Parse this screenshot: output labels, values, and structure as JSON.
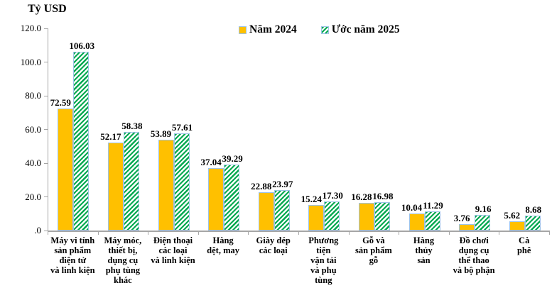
{
  "chart_data": {
    "type": "bar",
    "title": "",
    "ylabel": "Tỷ USD",
    "xlabel": "",
    "ylim": [
      0,
      120
    ],
    "ytick_step": 20,
    "ytick_labels": [
      "120.0",
      "100.0",
      "80.0",
      "60.0",
      "40.0",
      "20.0",
      ".0"
    ],
    "grid": false,
    "legend_position": "top-center",
    "value_labels_shown": true,
    "value_label_format": "0.00",
    "categories": [
      "Máy vi tính sản phẩm điện tử và linh kiện",
      "Máy móc, thiết bị, dụng cụ phụ tùng khác",
      "Điện thoại các loại và linh kiện",
      "Hàng dệt, may",
      "Giày dép các loại",
      "Phương tiện vận tải và phụ tùng",
      "Gỗ và sản phẩm gỗ",
      "Hàng thủy sản",
      "Đồ chơi dụng cụ thể thao và bộ phận",
      "Cà phê"
    ],
    "categories_display": [
      "Máy vi tính\nsản phẩm\nđiện tử\nvà linh kiện",
      "Máy móc,\nthiết bị,\ndụng cụ\nphụ tùng\nkhác",
      "Điện thoại\ncác loại\nvà linh kiện",
      "Hàng\ndệt, may",
      "Giày dép\ncác loại",
      "Phương\ntiện\nvận tải\nvà phụ\ntùng",
      "Gỗ và\nsản phẩm\ngỗ",
      "Hàng\nthủy\nsản",
      "Đồ chơi\ndụng cụ\nthể thao\nvà bộ phận",
      "Cà\nphê"
    ],
    "series": [
      {
        "name": "Năm 2024",
        "pattern": "solid",
        "color": "#FFC000",
        "values": [
          72.59,
          52.17,
          53.89,
          37.04,
          22.88,
          15.24,
          16.28,
          10.04,
          3.76,
          5.62
        ]
      },
      {
        "name": "Ước năm 2025",
        "pattern": "diagonal-hatch",
        "color": "#00A850",
        "values": [
          106.03,
          58.38,
          57.61,
          39.29,
          23.97,
          17.3,
          16.98,
          11.29,
          9.16,
          8.68
        ]
      }
    ]
  },
  "colors": {
    "bar_2024": "#FFC000",
    "bar_2025_hatch": "#00A850",
    "bar_2025_bg": "#FFFFFF",
    "bar_border": "#9DC3E6",
    "axis": "#A6A6A6",
    "text": "#000000",
    "background": "#FFFFFF"
  }
}
